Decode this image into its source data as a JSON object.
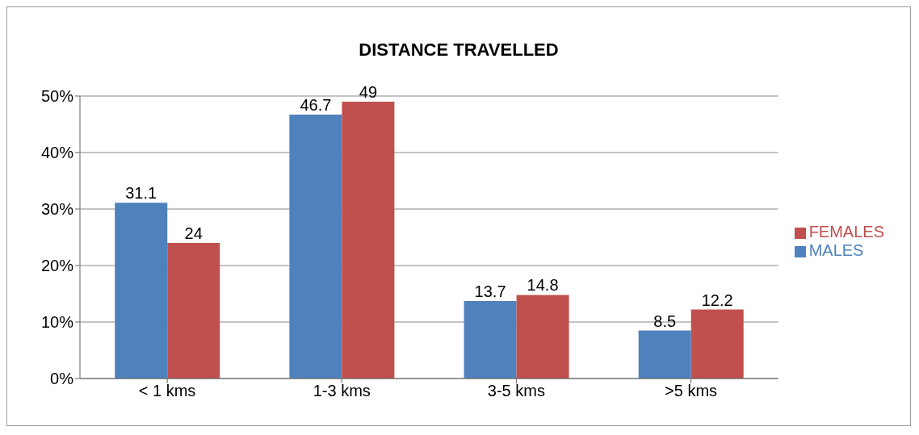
{
  "chart_data": {
    "type": "bar",
    "title": "DISTANCE TRAVELLED",
    "categories": [
      "< 1 kms",
      "1-3 kms",
      "3-5 kms",
      ">5 kms"
    ],
    "series": [
      {
        "name": "MALES",
        "color": "#4f81bd",
        "values": [
          31.1,
          46.7,
          13.7,
          8.5
        ]
      },
      {
        "name": "FEMALES",
        "color": "#c0504d",
        "values": [
          24,
          49,
          14.8,
          12.2
        ]
      }
    ],
    "ylim": [
      0,
      50
    ],
    "yticks": [
      {
        "value": 0,
        "label": "0%"
      },
      {
        "value": 10,
        "label": "10%"
      },
      {
        "value": 20,
        "label": "20%"
      },
      {
        "value": 30,
        "label": "30%"
      },
      {
        "value": 40,
        "label": "40%"
      },
      {
        "value": 50,
        "label": "50%"
      }
    ],
    "grid": "y",
    "legend": "right",
    "data_labels": true
  }
}
